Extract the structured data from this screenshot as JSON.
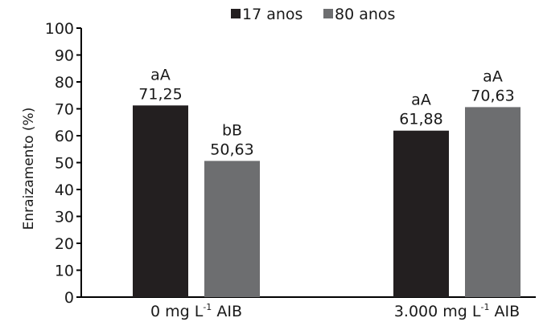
{
  "chart_data": {
    "type": "bar",
    "ylabel": "Enraizamento (%)",
    "ylim": [
      0,
      100
    ],
    "yticks": [
      "0",
      "10",
      "20",
      "30",
      "40",
      "50",
      "60",
      "70",
      "80",
      "90",
      "100"
    ],
    "grid": false,
    "legend_position": "top",
    "categories": [
      {
        "main": "0 mg L",
        "sup": "-1",
        "tail": " AIB"
      },
      {
        "main": "3.000 mg L",
        "sup": "-1",
        "tail": " AIB"
      }
    ],
    "series": [
      {
        "name": "17 anos",
        "color": "#231f20",
        "values": [
          71.25,
          61.88
        ],
        "value_labels": [
          "71,25",
          "61,88"
        ],
        "letters": [
          "aA",
          "aA"
        ]
      },
      {
        "name": "80 anos",
        "color": "#6d6e70",
        "values": [
          50.63,
          70.63
        ],
        "value_labels": [
          "50,63",
          "70,63"
        ],
        "letters": [
          "bB",
          "aA"
        ]
      }
    ]
  }
}
